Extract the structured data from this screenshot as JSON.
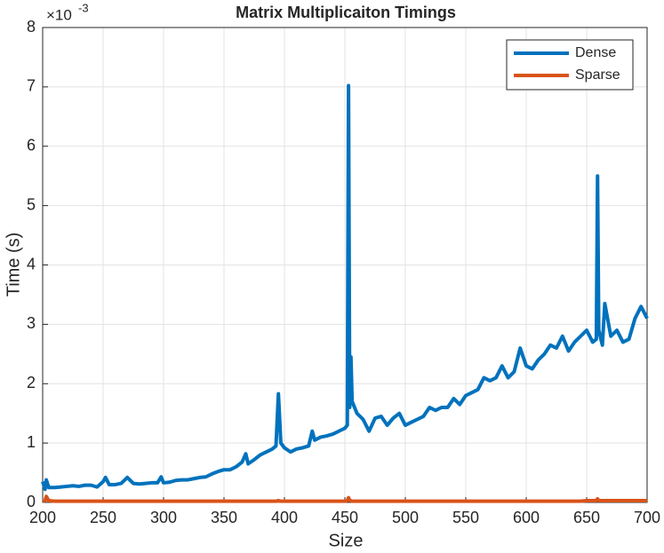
{
  "chart_data": {
    "type": "line",
    "title": "Matrix Multiplicaiton Timings",
    "x_label": "Size",
    "y_label": "Time (s)",
    "y_exponent": {
      "base": "×10",
      "power": "-3"
    },
    "xlim": [
      200,
      700
    ],
    "xticks": [
      200,
      250,
      300,
      350,
      400,
      450,
      500,
      550,
      600,
      650,
      700
    ],
    "ylim": [
      0,
      8
    ],
    "yticks": [
      0,
      1,
      2,
      3,
      4,
      5,
      6,
      7,
      8
    ],
    "grid": true,
    "legend": "top-right",
    "x": [
      200,
      202,
      203,
      205,
      210,
      215,
      220,
      225,
      230,
      235,
      240,
      245,
      250,
      252,
      255,
      260,
      265,
      270,
      275,
      280,
      285,
      290,
      295,
      298,
      300,
      305,
      310,
      315,
      320,
      325,
      330,
      335,
      340,
      345,
      350,
      355,
      360,
      365,
      368,
      370,
      375,
      380,
      385,
      390,
      393,
      395,
      397,
      400,
      405,
      410,
      415,
      420,
      423,
      425,
      430,
      435,
      440,
      445,
      450,
      452,
      453,
      454,
      455,
      456,
      460,
      465,
      470,
      475,
      480,
      485,
      490,
      495,
      500,
      505,
      510,
      515,
      520,
      525,
      530,
      535,
      540,
      545,
      550,
      555,
      560,
      565,
      570,
      575,
      580,
      585,
      590,
      595,
      600,
      605,
      610,
      615,
      620,
      625,
      630,
      635,
      640,
      645,
      650,
      655,
      658,
      659,
      660,
      663,
      665,
      670,
      675,
      680,
      685,
      690,
      695,
      700
    ],
    "series": [
      {
        "name": "Dense",
        "color": "#0072bd",
        "values": [
          0.35,
          0.22,
          0.38,
          0.25,
          0.25,
          0.26,
          0.27,
          0.28,
          0.27,
          0.29,
          0.29,
          0.26,
          0.35,
          0.42,
          0.3,
          0.3,
          0.32,
          0.42,
          0.32,
          0.31,
          0.32,
          0.33,
          0.33,
          0.43,
          0.33,
          0.34,
          0.37,
          0.38,
          0.38,
          0.4,
          0.42,
          0.43,
          0.48,
          0.52,
          0.55,
          0.55,
          0.6,
          0.68,
          0.82,
          0.65,
          0.72,
          0.8,
          0.85,
          0.9,
          0.95,
          1.83,
          1.0,
          0.92,
          0.85,
          0.9,
          0.92,
          0.95,
          1.2,
          1.05,
          1.1,
          1.12,
          1.15,
          1.2,
          1.25,
          1.3,
          7.02,
          1.6,
          2.45,
          1.7,
          1.5,
          1.4,
          1.2,
          1.42,
          1.45,
          1.3,
          1.42,
          1.5,
          1.3,
          1.35,
          1.4,
          1.45,
          1.6,
          1.55,
          1.6,
          1.6,
          1.75,
          1.65,
          1.8,
          1.85,
          1.9,
          2.1,
          2.05,
          2.1,
          2.3,
          2.1,
          2.2,
          2.6,
          2.3,
          2.25,
          2.4,
          2.5,
          2.65,
          2.6,
          2.8,
          2.55,
          2.7,
          2.8,
          2.9,
          2.7,
          2.75,
          5.5,
          2.9,
          2.65,
          3.35,
          2.8,
          2.9,
          2.7,
          2.75,
          3.1,
          3.3,
          3.1
        ]
      },
      {
        "name": "Sparse",
        "color": "#d95319",
        "values": [
          0.02,
          0.03,
          0.1,
          0.03,
          0.02,
          0.02,
          0.02,
          0.02,
          0.02,
          0.02,
          0.02,
          0.02,
          0.02,
          0.02,
          0.02,
          0.02,
          0.02,
          0.02,
          0.02,
          0.02,
          0.02,
          0.02,
          0.02,
          0.02,
          0.02,
          0.02,
          0.02,
          0.02,
          0.02,
          0.02,
          0.02,
          0.02,
          0.02,
          0.02,
          0.02,
          0.02,
          0.02,
          0.02,
          0.02,
          0.02,
          0.02,
          0.02,
          0.02,
          0.02,
          0.02,
          0.03,
          0.02,
          0.02,
          0.02,
          0.02,
          0.02,
          0.02,
          0.02,
          0.02,
          0.02,
          0.02,
          0.02,
          0.02,
          0.02,
          0.03,
          0.08,
          0.03,
          0.03,
          0.02,
          0.02,
          0.02,
          0.02,
          0.02,
          0.02,
          0.02,
          0.02,
          0.02,
          0.02,
          0.02,
          0.02,
          0.02,
          0.02,
          0.02,
          0.02,
          0.02,
          0.02,
          0.02,
          0.02,
          0.02,
          0.02,
          0.02,
          0.02,
          0.02,
          0.02,
          0.02,
          0.02,
          0.02,
          0.02,
          0.02,
          0.02,
          0.02,
          0.02,
          0.02,
          0.02,
          0.02,
          0.02,
          0.02,
          0.03,
          0.03,
          0.03,
          0.06,
          0.03,
          0.03,
          0.03,
          0.03,
          0.03,
          0.03,
          0.03,
          0.03,
          0.03,
          0.03
        ]
      }
    ]
  }
}
